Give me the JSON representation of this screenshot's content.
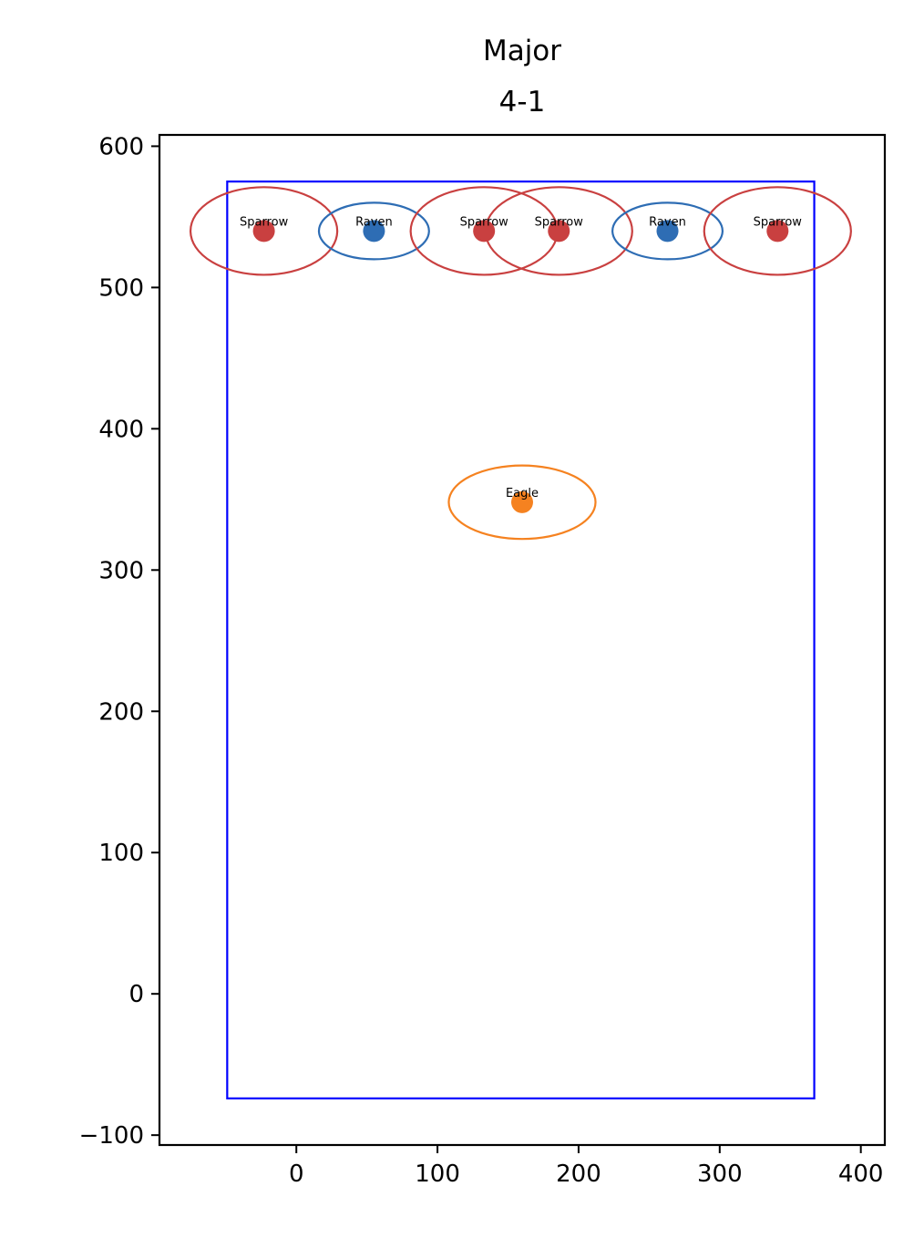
{
  "chart_data": {
    "type": "scatter",
    "title_line1": "Major",
    "title_line2": "4-1",
    "xlabel": "",
    "ylabel": "",
    "xlim": [
      -97,
      417
    ],
    "ylim": [
      -107,
      608
    ],
    "xticks": [
      0,
      100,
      200,
      300,
      400
    ],
    "yticks": [
      -100,
      0,
      100,
      200,
      300,
      400,
      500,
      600
    ],
    "xtick_labels": [
      "0",
      "100",
      "200",
      "300",
      "400"
    ],
    "ytick_labels": [
      "−100",
      "0",
      "100",
      "200",
      "300",
      "400",
      "500",
      "600"
    ],
    "grid": false,
    "boundary": {
      "x0": -49,
      "y0": -74,
      "x1": 367,
      "y1": 575,
      "color": "#0000ff"
    },
    "colors": {
      "Sparrow": "#c94040",
      "Raven": "#2e6db4",
      "Eagle": "#f58220"
    },
    "points": [
      {
        "label": "Sparrow",
        "x": -23,
        "y": 540,
        "rx": 52,
        "ry": 31
      },
      {
        "label": "Raven",
        "x": 55,
        "y": 540,
        "rx": 39,
        "ry": 20
      },
      {
        "label": "Sparrow",
        "x": 133,
        "y": 540,
        "rx": 52,
        "ry": 31
      },
      {
        "label": "Sparrow",
        "x": 186,
        "y": 540,
        "rx": 52,
        "ry": 31
      },
      {
        "label": "Raven",
        "x": 263,
        "y": 540,
        "rx": 39,
        "ry": 20
      },
      {
        "label": "Sparrow",
        "x": 341,
        "y": 540,
        "rx": 52,
        "ry": 31
      },
      {
        "label": "Eagle",
        "x": 160,
        "y": 348,
        "rx": 52,
        "ry": 26
      }
    ]
  }
}
